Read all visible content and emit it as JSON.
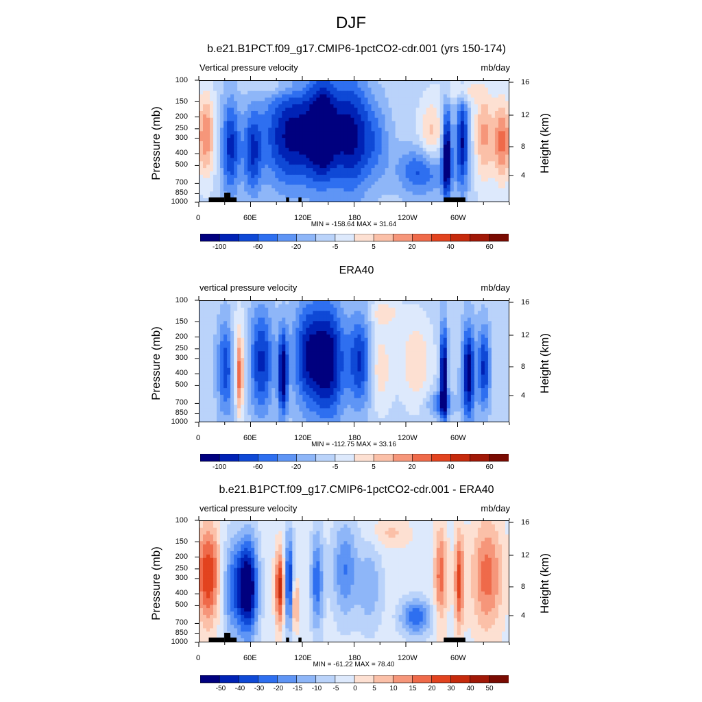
{
  "figure": {
    "title": "DJF"
  },
  "chart_data": [
    {
      "type": "heatmap",
      "title": "b.e21.B1PCT.f09_g17.CMIP6-1pctCO2-cdr.001 (yrs 150-174)",
      "left_label": "Vertical pressure velocity",
      "right_label": "mb/day",
      "ylabel": "Pressure (mb)",
      "ylabel_right": "Height (km)",
      "x_ticks": [
        "0",
        "60E",
        "120E",
        "180",
        "120W",
        "60W"
      ],
      "y_ticks": [
        "100",
        "150",
        "200",
        "250",
        "300",
        "400",
        "500",
        "700",
        "850",
        "1000"
      ],
      "y_right_ticks": [
        "16",
        "12",
        "8",
        "4"
      ],
      "min_max": "MIN = -158.64  MAX =  31.64",
      "colorbar_labels": [
        "-100",
        "-60",
        "-20",
        "-5",
        "5",
        "20",
        "40",
        "60"
      ],
      "colorbar_colors": [
        "#00007f",
        "#0022b5",
        "#0f49d6",
        "#2e6ff0",
        "#5f95f5",
        "#8eb6f8",
        "#bad3fa",
        "#dde9fc",
        "#fde0d2",
        "#fbc0a8",
        "#f6967a",
        "#ef6a4a",
        "#e2431f",
        "#c62a0c",
        "#a11807",
        "#7a0b02"
      ]
    },
    {
      "type": "heatmap",
      "title": "ERA40",
      "left_label": "vertical pressure velocity",
      "right_label": "mb/day",
      "ylabel": "Pressure (mb)",
      "ylabel_right": "Height (km)",
      "x_ticks": [
        "0",
        "60E",
        "120E",
        "180",
        "120W",
        "60W"
      ],
      "y_ticks": [
        "100",
        "150",
        "200",
        "250",
        "300",
        "400",
        "500",
        "700",
        "850",
        "1000"
      ],
      "y_right_ticks": [
        "16",
        "12",
        "8",
        "4"
      ],
      "min_max": "MIN = -112.75  MAX =  33.16",
      "colorbar_labels": [
        "-100",
        "-60",
        "-20",
        "-5",
        "5",
        "20",
        "40",
        "60"
      ],
      "colorbar_colors": [
        "#00007f",
        "#0022b5",
        "#0f49d6",
        "#2e6ff0",
        "#5f95f5",
        "#8eb6f8",
        "#bad3fa",
        "#dde9fc",
        "#fde0d2",
        "#fbc0a8",
        "#f6967a",
        "#ef6a4a",
        "#e2431f",
        "#c62a0c",
        "#a11807",
        "#7a0b02"
      ]
    },
    {
      "type": "heatmap",
      "title": "b.e21.B1PCT.f09_g17.CMIP6-1pctCO2-cdr.001 - ERA40",
      "left_label": "vertical pressure velocity",
      "right_label": "mb/day",
      "ylabel": "Pressure (mb)",
      "ylabel_right": "Height (km)",
      "x_ticks": [
        "0",
        "60E",
        "120E",
        "180",
        "120W",
        "60W"
      ],
      "y_ticks": [
        "100",
        "150",
        "200",
        "250",
        "300",
        "400",
        "500",
        "700",
        "850",
        "1000"
      ],
      "y_right_ticks": [
        "16",
        "12",
        "8",
        "4"
      ],
      "min_max": "MIN = -61.22  MAX =  78.40",
      "colorbar_labels": [
        "-50",
        "-40",
        "-30",
        "-20",
        "-15",
        "-10",
        "-5",
        "0",
        "5",
        "10",
        "15",
        "20",
        "30",
        "40",
        "50"
      ],
      "colorbar_colors": [
        "#00007f",
        "#0022b5",
        "#0f49d6",
        "#2e6ff0",
        "#5f95f5",
        "#8eb6f8",
        "#bad3fa",
        "#dde9fc",
        "#fde0d2",
        "#fbc0a8",
        "#f6967a",
        "#ef6a4a",
        "#e2431f",
        "#c62a0c",
        "#a11807",
        "#7a0b02"
      ]
    }
  ]
}
